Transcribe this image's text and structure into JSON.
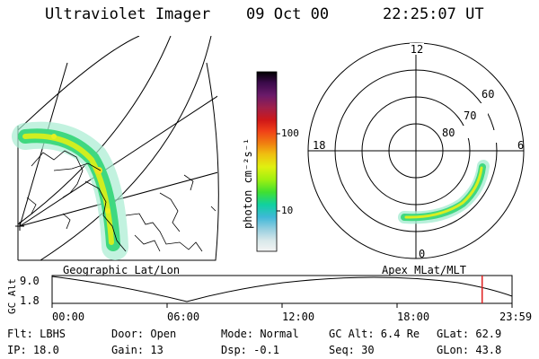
{
  "header": {
    "instrument": "Ultraviolet Imager",
    "date": "09 Oct 00",
    "time": "22:25:07 UT"
  },
  "left_map": {
    "label": "Geographic Lat/Lon"
  },
  "colorbar": {
    "unit_label": "photon cm⁻²s⁻¹",
    "tick_100": "100",
    "tick_10": "10",
    "stops": [
      "#000000",
      "#3a0a4a",
      "#6a1a6a",
      "#a0204a",
      "#d01818",
      "#f04018",
      "#f08010",
      "#f0c010",
      "#e0f010",
      "#a0f010",
      "#40e030",
      "#10d0a0",
      "#40b8d8",
      "#9ad0e0",
      "#d8e8ea",
      "#f4f4f4"
    ]
  },
  "right_map": {
    "label": "Apex MLat/MLT",
    "mlt_12": "12",
    "mlt_18": "18",
    "mlt_6": "6",
    "mlt_0": "0",
    "lat_60": "60",
    "lat_70": "70",
    "lat_80": "80"
  },
  "altitude_plot": {
    "ylabel": "GC Alt",
    "ytick_top": "9.0",
    "ytick_bottom": "1.8",
    "xticks": [
      "00:00",
      "06:00",
      "12:00",
      "18:00",
      "23:59"
    ],
    "current_time_fraction": 0.935
  },
  "info": {
    "flt": "Flt: LBHS",
    "door": "Door: Open",
    "mode": "Mode: Normal",
    "gc_alt": "GC Alt: 6.4 Re",
    "glat": "GLat:  62.9",
    "ip": "IP: 18.0",
    "gain": "Gain: 13",
    "dsp": "Dsp:   -0.1",
    "seq": "Seq: 30",
    "glon": "GLon:  43.8"
  }
}
